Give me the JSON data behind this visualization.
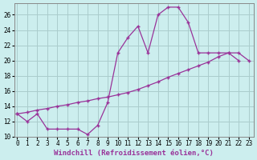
{
  "bg_color": "#cceeee",
  "grid_color": "#aacccc",
  "line_color": "#993399",
  "xlabel": "Windchill (Refroidissement éolien,°C)",
  "curve1_x": [
    0,
    1,
    2,
    3,
    4,
    5,
    6,
    7,
    8,
    9,
    10,
    11,
    12,
    13,
    14,
    15,
    16,
    17,
    18,
    19,
    20,
    21,
    22
  ],
  "curve1_y": [
    13.0,
    12.0,
    13.0,
    11.0,
    11.0,
    11.0,
    11.0,
    10.3,
    11.5,
    14.5,
    21.0,
    23.0,
    24.5,
    21.0,
    26.0,
    27.0,
    27.0,
    25.0,
    21.0,
    21.0,
    21.0,
    21.0,
    20.0
  ],
  "curve2_x": [
    0,
    1,
    2,
    3,
    4,
    5,
    6,
    7,
    8,
    9,
    10,
    11,
    12,
    13,
    14,
    15,
    16,
    17,
    18,
    19,
    20,
    21,
    22,
    23
  ],
  "curve2_y": [
    13.0,
    13.2,
    13.5,
    13.7,
    14.0,
    14.2,
    14.5,
    14.7,
    15.0,
    15.2,
    15.5,
    15.8,
    16.2,
    16.7,
    17.2,
    17.8,
    18.3,
    18.8,
    19.3,
    19.8,
    20.5,
    21.0,
    21.0,
    20.0
  ],
  "xlim": [
    -0.3,
    23.5
  ],
  "ylim": [
    10,
    27.5
  ],
  "yticks": [
    10,
    12,
    14,
    16,
    18,
    20,
    22,
    24,
    26
  ],
  "xticks": [
    0,
    1,
    2,
    3,
    4,
    5,
    6,
    7,
    8,
    9,
    10,
    11,
    12,
    13,
    14,
    15,
    16,
    17,
    18,
    19,
    20,
    21,
    22,
    23
  ],
  "tick_fontsize": 5.5,
  "xlabel_fontsize": 6.5
}
